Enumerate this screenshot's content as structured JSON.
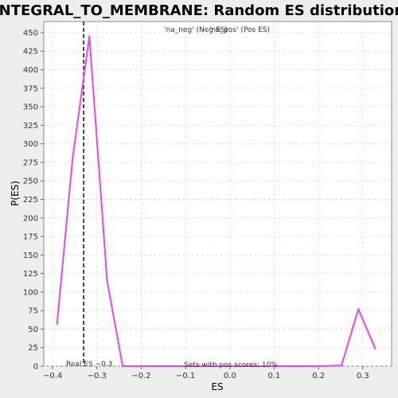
{
  "chart_data": {
    "type": "line",
    "title": "INTEGRAL_TO_MEMBRANE: Random ES distribution",
    "xlabel": "ES",
    "ylabel": "P(ES)",
    "xlim": [
      -0.42,
      0.365
    ],
    "ylim": [
      0,
      465
    ],
    "xticks": [
      -0.4,
      -0.3,
      -0.2,
      -0.1,
      0.0,
      0.1,
      0.2,
      0.3
    ],
    "xtick_labels": [
      "−0.4",
      "−0.3",
      "−0.2",
      "−0.1",
      "0.0",
      "0.1",
      "0.2",
      "0.3"
    ],
    "yticks": [
      0,
      25,
      50,
      75,
      100,
      125,
      150,
      175,
      200,
      225,
      250,
      275,
      300,
      325,
      350,
      375,
      400,
      425,
      450
    ],
    "grid": true,
    "legend": {
      "placement": "top-center",
      "entries": [
        {
          "label": "'na_neg' (Neg ES)",
          "color": "#3333cc"
        },
        {
          "label": "'na_pos' (Pos ES)",
          "color": "#cc3333"
        }
      ]
    },
    "series": [
      {
        "name": "'na_pos' (Pos ES)",
        "color": "#ee44ee",
        "x": [
          -0.39,
          -0.355,
          -0.317,
          -0.277,
          -0.242,
          -0.2,
          -0.1,
          0.0,
          0.1,
          0.2,
          0.252,
          0.29,
          0.328
        ],
        "y": [
          57,
          280,
          445,
          115,
          0,
          0,
          0,
          0,
          0,
          0,
          1,
          77,
          24
        ]
      }
    ],
    "annotations": {
      "real_es_value": -0.33,
      "real_es_label": "Real ES −0.3",
      "pos_scores_label": "Sets with pos scores: 10%"
    }
  }
}
